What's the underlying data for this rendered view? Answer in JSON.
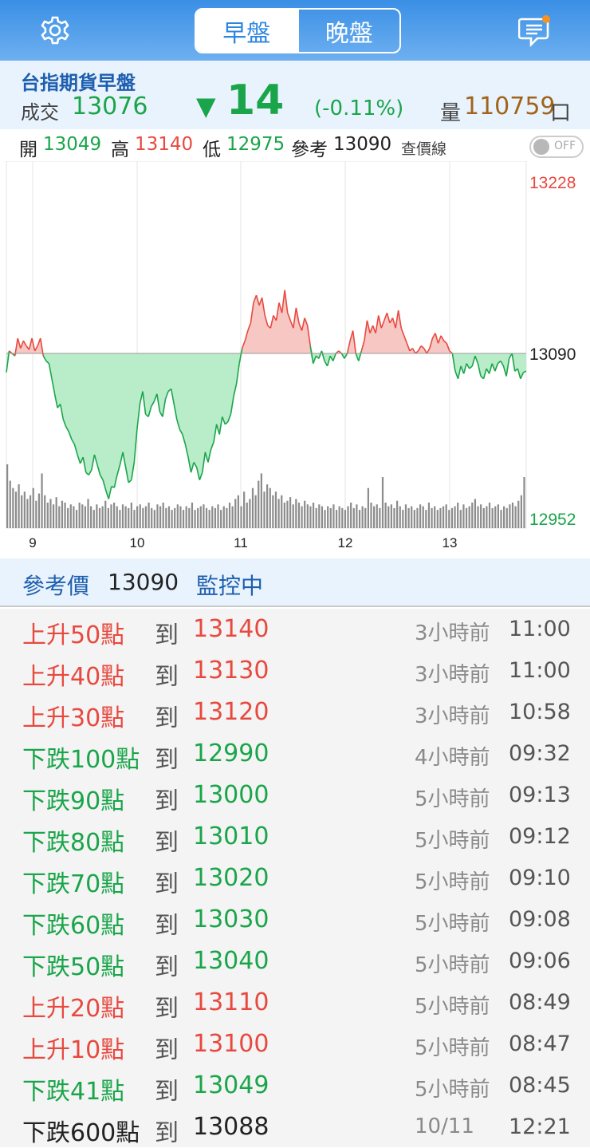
{
  "header": {
    "settings_icon": "gear-icon",
    "tab_morning": "早盤",
    "tab_night": "晚盤",
    "message_icon": "chat-icon"
  },
  "quote": {
    "title": "台指期貨早盤",
    "trade_label": "成交",
    "price": "13076",
    "arrow": "▼",
    "change": "14",
    "change_pct": "(-0.11%)",
    "volume_label": "量",
    "volume": "110759",
    "volume_unit": "口"
  },
  "ohlc": {
    "open_label": "開",
    "open": "13049",
    "high_label": "高",
    "high": "13140",
    "low_label": "低",
    "low": "12975",
    "ref_label": "參考",
    "ref": "13090",
    "line_label": "查價線",
    "toggle_text": "OFF"
  },
  "colors": {
    "up": "#e8493f",
    "down": "#1aa54a",
    "blue": "#1d5fae",
    "neutral": "#222222"
  },
  "chart_data": {
    "type": "area",
    "y_labels": {
      "max": "13228",
      "ref": "13090",
      "min": "12952"
    },
    "ylim": [
      12952,
      13228
    ],
    "reference": 13090,
    "x_ticks": [
      "9",
      "10",
      "11",
      "12",
      "13"
    ],
    "series": [
      {
        "values": [
          13075,
          13092,
          13090,
          13088,
          13102,
          13094,
          13100,
          13096,
          13093,
          13102,
          13092,
          13096,
          13102,
          13088,
          13084,
          13082,
          13070,
          13058,
          13047,
          13050,
          13038,
          13032,
          13028,
          13022,
          13018,
          13010,
          13003,
          13008,
          12996,
          12994,
          12998,
          13010,
          13002,
          12994,
          12990,
          12982,
          12975,
          12985,
          12984,
          12994,
          13002,
          13012,
          13000,
          12988,
          12990,
          13004,
          13030,
          13050,
          13060,
          13042,
          13040,
          13048,
          13052,
          13058,
          13044,
          13040,
          13054,
          13060,
          13062,
          13050,
          13038,
          13030,
          13026,
          13018,
          13008,
          12996,
          13004,
          13000,
          12990,
          12996,
          13012,
          13004,
          13014,
          13020,
          13034,
          13026,
          13040,
          13034,
          13036,
          13042,
          13056,
          13066,
          13082,
          13094,
          13100,
          13108,
          13114,
          13130,
          13136,
          13128,
          13134,
          13120,
          13112,
          13110,
          13120,
          13116,
          13130,
          13122,
          13140,
          13122,
          13116,
          13110,
          13126,
          13114,
          13108,
          13118,
          13112,
          13096,
          13082,
          13088,
          13086,
          13092,
          13084,
          13080,
          13088,
          13084,
          13090,
          13092,
          13090,
          13086,
          13090,
          13100,
          13108,
          13090,
          13084,
          13092,
          13100,
          13116,
          13106,
          13112,
          13106,
          13120,
          13110,
          13116,
          13122,
          13114,
          13118,
          13110,
          13124,
          13110,
          13104,
          13098,
          13092,
          13094,
          13090,
          13092,
          13096,
          13094,
          13090,
          13094,
          13102,
          13106,
          13098,
          13104,
          13100,
          13098,
          13092,
          13090,
          13076,
          13070,
          13080,
          13074,
          13082,
          13078,
          13080,
          13088,
          13082,
          13072,
          13070,
          13078,
          13074,
          13082,
          13076,
          13082,
          13084,
          13080,
          13072,
          13086,
          13090,
          13076,
          13078,
          13070,
          13075,
          13076
        ]
      }
    ],
    "volume": [
      35,
      26,
      22,
      20,
      24,
      18,
      20,
      16,
      18,
      22,
      15,
      19,
      30,
      18,
      14,
      16,
      13,
      17,
      12,
      15,
      14,
      11,
      13,
      12,
      10,
      14,
      13,
      12,
      16,
      12,
      10,
      13,
      11,
      12,
      15,
      11,
      13,
      14,
      12,
      10,
      13,
      12,
      11,
      14,
      10,
      12,
      13,
      11,
      12,
      14,
      11,
      10,
      13,
      12,
      14,
      11,
      12,
      10,
      11,
      13,
      12,
      10,
      12,
      11,
      14,
      10,
      11,
      12,
      13,
      11,
      10,
      12,
      11,
      13,
      10,
      12,
      11,
      14,
      12,
      16,
      18,
      12,
      20,
      14,
      16,
      22,
      18,
      26,
      30,
      20,
      24,
      22,
      18,
      20,
      16,
      18,
      14,
      15,
      17,
      13,
      16,
      14,
      12,
      15,
      13,
      12,
      14,
      11,
      13,
      12,
      10,
      12,
      11,
      13,
      10,
      12,
      11,
      10,
      12,
      14,
      11,
      13,
      10,
      12,
      11,
      22,
      14,
      12,
      13,
      11,
      28,
      14,
      12,
      13,
      11,
      15,
      12,
      10,
      13,
      11,
      12,
      10,
      11,
      13,
      12,
      10,
      14,
      11,
      12,
      10,
      11,
      12,
      13,
      10,
      11,
      12,
      14,
      10,
      13,
      11,
      12,
      14,
      16,
      12,
      13,
      11,
      12,
      14,
      11,
      12,
      13,
      10,
      12,
      11,
      13,
      14,
      12,
      15,
      18,
      28
    ]
  },
  "monitor": {
    "label": "參考價",
    "value": "13090",
    "status": "監控中"
  },
  "alerts": [
    {
      "cond": "上升50點",
      "to": "到",
      "target": "13140",
      "ago": "3小時前",
      "time": "11:00",
      "dir": "up"
    },
    {
      "cond": "上升40點",
      "to": "到",
      "target": "13130",
      "ago": "3小時前",
      "time": "11:00",
      "dir": "up"
    },
    {
      "cond": "上升30點",
      "to": "到",
      "target": "13120",
      "ago": "3小時前",
      "time": "10:58",
      "dir": "up"
    },
    {
      "cond": "下跌100點",
      "to": "到",
      "target": "12990",
      "ago": "4小時前",
      "time": "09:32",
      "dir": "down"
    },
    {
      "cond": "下跌90點",
      "to": "到",
      "target": "13000",
      "ago": "5小時前",
      "time": "09:13",
      "dir": "down"
    },
    {
      "cond": "下跌80點",
      "to": "到",
      "target": "13010",
      "ago": "5小時前",
      "time": "09:12",
      "dir": "down"
    },
    {
      "cond": "下跌70點",
      "to": "到",
      "target": "13020",
      "ago": "5小時前",
      "time": "09:10",
      "dir": "down"
    },
    {
      "cond": "下跌60點",
      "to": "到",
      "target": "13030",
      "ago": "5小時前",
      "time": "09:08",
      "dir": "down"
    },
    {
      "cond": "下跌50點",
      "to": "到",
      "target": "13040",
      "ago": "5小時前",
      "time": "09:06",
      "dir": "down"
    },
    {
      "cond": "上升20點",
      "to": "到",
      "target": "13110",
      "ago": "5小時前",
      "time": "08:49",
      "dir": "up"
    },
    {
      "cond": "上升10點",
      "to": "到",
      "target": "13100",
      "ago": "5小時前",
      "time": "08:47",
      "dir": "up"
    },
    {
      "cond": "下跌41點",
      "to": "到",
      "target": "13049",
      "ago": "5小時前",
      "time": "08:45",
      "dir": "down"
    },
    {
      "cond": "下跌600點",
      "to": "到",
      "target": "13088",
      "ago": "10/11",
      "time": "12:21",
      "dir": "neutral"
    }
  ]
}
